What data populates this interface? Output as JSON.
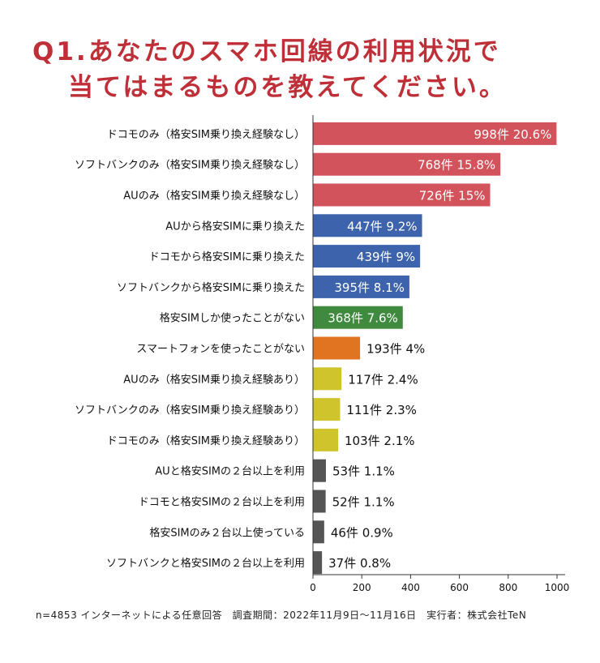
{
  "title_line1": "Q1.あなたのスマホ回線の利用状況で",
  "title_line2": "当てはまるものを教えてください。",
  "footnote": "n=4853 インターネットによる任意回答　調査期間：2022年11月9日～11月16日　実行者：株式会社TeN",
  "colors": {
    "title": "#bf2f38",
    "red": "#d2535b",
    "blue": "#3e63ad",
    "green": "#3f8a3f",
    "orange": "#e07420",
    "yellow": "#cfc42b",
    "gray": "#555555"
  },
  "chart_data": {
    "type": "bar",
    "orientation": "horizontal",
    "categories": [
      "ドコモのみ（格安SIM乗り換え経験なし）",
      "ソフトバンクのみ（格安SIM乗り換え経験なし）",
      "AUのみ（格安SIM乗り換え経験なし）",
      "AUから格安SIMに乗り換えた",
      "ドコモから格安SIMに乗り換えた",
      "ソフトバンクから格安SIMに乗り換えた",
      "格安SIMしか使ったことがない",
      "スマートフォンを使ったことがない",
      "AUのみ（格安SIM乗り換え経験あり）",
      "ソフトバンクのみ（格安SIM乗り換え経験あり）",
      "ドコモのみ（格安SIM乗り換え経験あり）",
      "AUと格安SIMの２台以上を利用",
      "ドコモと格安SIMの２台以上を利用",
      "格安SIMのみ２台以上使っている",
      "ソフトバンクと格安SIMの２台以上を利用"
    ],
    "values": [
      998,
      768,
      726,
      447,
      439,
      395,
      368,
      193,
      117,
      111,
      103,
      53,
      52,
      46,
      37
    ],
    "value_labels": [
      "998件 20.6%",
      "768件 15.8%",
      "726件 15%",
      "447件 9.2%",
      "439件 9%",
      "395件 8.1%",
      "368件 7.6%",
      "193件 4%",
      "117件 2.4%",
      "111件 2.3%",
      "103件 2.1%",
      "53件 1.1%",
      "52件 1.1%",
      "46件 0.9%",
      "37件 0.8%"
    ],
    "bar_colors": [
      "red",
      "red",
      "red",
      "blue",
      "blue",
      "blue",
      "green",
      "orange",
      "yellow",
      "yellow",
      "yellow",
      "gray",
      "gray",
      "gray",
      "gray"
    ],
    "label_inside": [
      true,
      true,
      true,
      true,
      true,
      true,
      true,
      false,
      false,
      false,
      false,
      false,
      false,
      false,
      false
    ],
    "xlim": [
      0,
      1000
    ],
    "xticks": [
      0,
      200,
      400,
      600,
      800,
      1000
    ]
  }
}
